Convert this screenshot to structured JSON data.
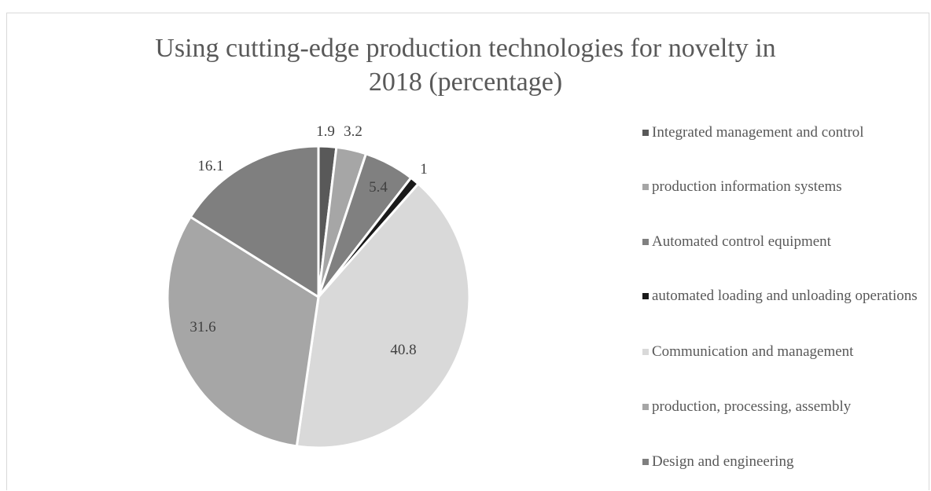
{
  "chart_data": {
    "type": "pie",
    "title": "Using cutting-edge production technologies for novelty in 2018 (percentage)",
    "title_lines": [
      "Using cutting-edge production technologies for novelty in",
      "2018 (percentage)"
    ],
    "categories": [
      "Integrated management and control",
      "production information systems",
      "Automated control equipment",
      "automated loading and unloading operations",
      "Communication and management",
      "production, processing, assembly",
      "Design and engineering"
    ],
    "values": [
      1.9,
      3.2,
      5.4,
      1,
      40.8,
      31.6,
      16.1
    ],
    "data_labels": [
      "1.9",
      "3.2",
      "5.4",
      "1",
      "40.8",
      "31.6",
      "16.1"
    ],
    "colors": [
      "#595959",
      "#a6a6a6",
      "#808080",
      "#1a1a1a",
      "#d9d9d9",
      "#a6a6a6",
      "#7f7f7f"
    ],
    "legend_position": "right",
    "start_angle": "12 o'clock, clockwise",
    "slice_border_color": "#ffffff"
  }
}
